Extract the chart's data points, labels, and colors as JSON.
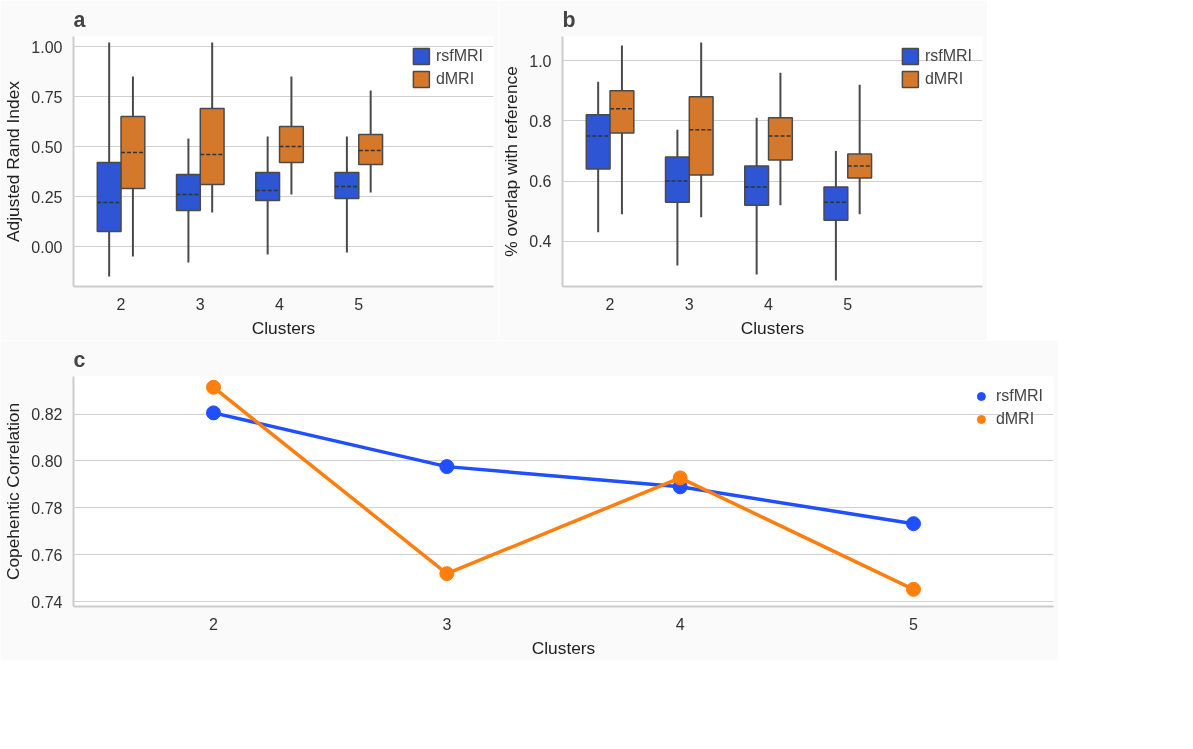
{
  "chart_data": [
    {
      "type": "box",
      "title": "a",
      "xlabel": "Clusters",
      "ylabel": "Adjusted Rand Index",
      "categories": [
        "2",
        "3",
        "4",
        "5"
      ],
      "ylim": [
        -0.2,
        1.05
      ],
      "yticks": [
        {
          "value": 0,
          "label": "0.00"
        },
        0.25,
        {
          "value": 0.5,
          "label": "0.50"
        },
        0.75,
        {
          "value": 1,
          "label": "1.00"
        }
      ],
      "grid": "y",
      "legend": "top right",
      "series": [
        {
          "name": "rsfMRI",
          "color": "#2d55d4",
          "boxes": [
            {
              "low": -0.15,
              "q1": 0.075,
              "median": 0.22,
              "q3": 0.42,
              "high": 1.02
            },
            {
              "low": -0.08,
              "q1": 0.18,
              "median": 0.26,
              "q3": 0.36,
              "high": 0.54
            },
            {
              "low": -0.04,
              "q1": 0.23,
              "median": 0.28,
              "q3": 0.37,
              "high": 0.55
            },
            {
              "low": -0.03,
              "q1": 0.24,
              "median": 0.3,
              "q3": 0.37,
              "high": 0.55
            }
          ]
        },
        {
          "name": "dMRI",
          "color": "#d4782b",
          "boxes": [
            {
              "low": -0.05,
              "q1": 0.29,
              "median": 0.47,
              "q3": 0.65,
              "high": 0.85
            },
            {
              "low": 0.17,
              "q1": 0.31,
              "median": 0.46,
              "q3": 0.69,
              "high": 1.02
            },
            {
              "low": 0.26,
              "q1": 0.42,
              "median": 0.5,
              "q3": 0.6,
              "high": 0.85
            },
            {
              "low": 0.27,
              "q1": 0.41,
              "median": 0.48,
              "q3": 0.56,
              "high": 0.78
            }
          ]
        }
      ]
    },
    {
      "type": "box",
      "title": "b",
      "xlabel": "Clusters",
      "ylabel": "% overlap with reference",
      "categories": [
        "2",
        "3",
        "4",
        "5"
      ],
      "ylim": [
        0.25,
        1.08
      ],
      "yticks": [
        0.4,
        0.6,
        0.8,
        {
          "value": 1,
          "label": "1.0"
        }
      ],
      "grid": "y",
      "legend": "top right",
      "series": [
        {
          "name": "rsfMRI",
          "color": "#2d55d4",
          "boxes": [
            {
              "low": 0.43,
              "q1": 0.64,
              "median": 0.75,
              "q3": 0.82,
              "high": 0.93
            },
            {
              "low": 0.32,
              "q1": 0.53,
              "median": 0.6,
              "q3": 0.68,
              "high": 0.77
            },
            {
              "low": 0.29,
              "q1": 0.52,
              "median": 0.58,
              "q3": 0.65,
              "high": 0.81
            },
            {
              "low": 0.27,
              "q1": 0.47,
              "median": 0.53,
              "q3": 0.58,
              "high": 0.7
            }
          ]
        },
        {
          "name": "dMRI",
          "color": "#d4782b",
          "boxes": [
            {
              "low": 0.49,
              "q1": 0.76,
              "median": 0.84,
              "q3": 0.9,
              "high": 1.05
            },
            {
              "low": 0.48,
              "q1": 0.62,
              "median": 0.77,
              "q3": 0.88,
              "high": 1.06
            },
            {
              "low": 0.52,
              "q1": 0.67,
              "median": 0.75,
              "q3": 0.81,
              "high": 0.96
            },
            {
              "low": 0.49,
              "q1": 0.61,
              "median": 0.65,
              "q3": 0.69,
              "high": 0.92
            }
          ]
        }
      ]
    },
    {
      "type": "line",
      "title": "c",
      "xlabel": "Clusters",
      "ylabel": "Copehentic Correlation",
      "categories": [
        "2",
        "3",
        "4",
        "5"
      ],
      "ylim": [
        0.738,
        0.836
      ],
      "yticks": [
        0.74,
        0.76,
        0.78,
        {
          "value": 0.8,
          "label": "0.80"
        },
        0.82
      ],
      "grid": "y",
      "legend": "top right",
      "marker": "circle",
      "series": [
        {
          "name": "rsfMRI",
          "color": "#1f4fff",
          "values": [
            0.8205,
            0.7976,
            0.789,
            0.7733
          ]
        },
        {
          "name": "dMRI",
          "color": "#ff7f0e",
          "values": [
            0.8314,
            0.752,
            0.7928,
            0.7453
          ]
        }
      ]
    }
  ]
}
